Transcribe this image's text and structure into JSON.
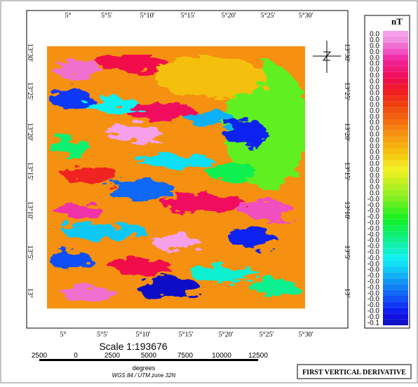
{
  "map": {
    "top_labels": [
      "5°",
      "5°5'",
      "5°10'",
      "5°15'",
      "5°20'",
      "5°25'",
      "5°30'"
    ],
    "bottom_labels": [
      "5°",
      "5°5'",
      "5°10'",
      "5°15'",
      "5°20'",
      "5°25'",
      "5°30'"
    ],
    "left_labels": [
      "13°30'",
      "13°25'",
      "13°20'",
      "13°15'",
      "13°10'",
      "13°5'",
      "13°"
    ],
    "right_labels": [
      "13°30'",
      "13°25'",
      "13°20'",
      "13°15'",
      "13°10'",
      "13°5'",
      "13°"
    ]
  },
  "legend": {
    "title": "nT",
    "entries": [
      {
        "label": "0.0",
        "color": "#f5a0e8"
      },
      {
        "label": "0.0",
        "color": "#f090e0"
      },
      {
        "label": "0.0",
        "color": "#f070d0"
      },
      {
        "label": "0.0",
        "color": "#f050c0"
      },
      {
        "label": "0.0",
        "color": "#f030a8"
      },
      {
        "label": "0.0",
        "color": "#f02090"
      },
      {
        "label": "0.0",
        "color": "#f01878"
      },
      {
        "label": "0.0",
        "color": "#f01060"
      },
      {
        "label": "0.0",
        "color": "#f01048"
      },
      {
        "label": "0.0",
        "color": "#f01830"
      },
      {
        "label": "0.0",
        "color": "#f02020"
      },
      {
        "label": "0.0",
        "color": "#f03018"
      },
      {
        "label": "0.0",
        "color": "#f04010"
      },
      {
        "label": "0.0",
        "color": "#f05010"
      },
      {
        "label": "0.0",
        "color": "#f06010"
      },
      {
        "label": "0.0",
        "color": "#f57010"
      },
      {
        "label": "0.0",
        "color": "#f58010"
      },
      {
        "label": "0.0",
        "color": "#f59010"
      },
      {
        "label": "0.0",
        "color": "#f5a010"
      },
      {
        "label": "0.0",
        "color": "#f5b010"
      },
      {
        "label": "0.0",
        "color": "#f5c010"
      },
      {
        "label": "0.0",
        "color": "#f5d010"
      },
      {
        "label": "0.0",
        "color": "#f5e020"
      },
      {
        "label": "0.0",
        "color": "#f0f020"
      },
      {
        "label": "0.0",
        "color": "#e0f020"
      },
      {
        "label": "0.0",
        "color": "#c8f020"
      },
      {
        "label": "0.0",
        "color": "#b0f020"
      },
      {
        "label": "0.0",
        "color": "#98f020"
      },
      {
        "label": "-0.0",
        "color": "#80f020"
      },
      {
        "label": "-0.0",
        "color": "#60f020"
      },
      {
        "label": "-0.0",
        "color": "#40f020"
      },
      {
        "label": "-0.0",
        "color": "#20f020"
      },
      {
        "label": "-0.0",
        "color": "#10f030"
      },
      {
        "label": "-0.0",
        "color": "#10f050"
      },
      {
        "label": "-0.0",
        "color": "#10f070"
      },
      {
        "label": "-0.0",
        "color": "#10f090"
      },
      {
        "label": "-0.0",
        "color": "#10f0b0"
      },
      {
        "label": "-0.0",
        "color": "#10f0d0"
      },
      {
        "label": "-0.0",
        "color": "#10f0f0"
      },
      {
        "label": "-0.0",
        "color": "#10e0f5"
      },
      {
        "label": "-0.0",
        "color": "#10c8f5"
      },
      {
        "label": "-0.0",
        "color": "#10b0f5"
      },
      {
        "label": "-0.0",
        "color": "#1098f5"
      },
      {
        "label": "-0.0",
        "color": "#1080f5"
      },
      {
        "label": "-0.0",
        "color": "#1068f5"
      },
      {
        "label": "-0.0",
        "color": "#1050f5"
      },
      {
        "label": "-0.0",
        "color": "#1038f5"
      },
      {
        "label": "-0.0",
        "color": "#1020f0"
      },
      {
        "label": "-0.0",
        "color": "#1010e0"
      },
      {
        "label": "-0.1",
        "color": "#1010c8"
      }
    ]
  },
  "scale": {
    "text": "Scale 1:193676",
    "ticks": [
      "2500",
      "0",
      "2500",
      "5000",
      "7500",
      "10000",
      "12500"
    ],
    "unit": "degrees",
    "projection": "WGS 84 / UTM zone 32N"
  },
  "title": "FIRST VERTICAL DERIVATIVE"
}
